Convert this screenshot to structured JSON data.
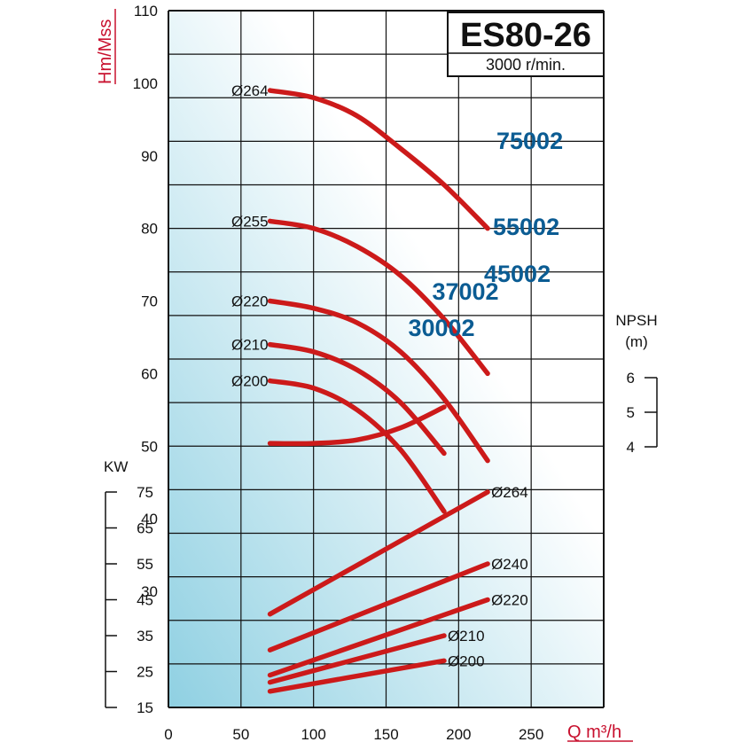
{
  "chart_data": {
    "type": "line",
    "title": "ES80-26",
    "subtitle": "3000 r/min.",
    "xlabel": "Q m³/h",
    "xlim": [
      0,
      300
    ],
    "x_ticks": [
      "0",
      "50",
      "100",
      "150",
      "200",
      "250"
    ],
    "grid": true,
    "colors": {
      "curve": "#cc1a1a",
      "model_label": "#0b5c93",
      "axis_label": "#c8102e",
      "grid": "#111111",
      "bg_light": "#ffffff",
      "bg_dark": "#8fd0e2"
    },
    "head": {
      "ylabel": "Hm/Mss",
      "ylim": [
        20,
        110
      ],
      "y_ticks": [
        "30",
        "40",
        "50",
        "60",
        "70",
        "80",
        "90",
        "100",
        "110"
      ],
      "series": [
        {
          "diameter": "Ø264",
          "model": "75002",
          "x": [
            70,
            100,
            130,
            160,
            190,
            220
          ],
          "y": [
            99,
            98,
            95.5,
            91,
            86,
            80
          ]
        },
        {
          "diameter": "Ø255",
          "model": "55002",
          "x": [
            70,
            100,
            130,
            160,
            190,
            220
          ],
          "y": [
            81,
            80,
            77.5,
            73.5,
            67.5,
            60
          ]
        },
        {
          "diameter": "Ø220",
          "model": "45002",
          "x": [
            70,
            100,
            130,
            160,
            190,
            220
          ],
          "y": [
            70,
            69,
            67,
            63,
            56.5,
            48
          ]
        },
        {
          "diameter": "Ø210",
          "model": "37002",
          "x": [
            70,
            100,
            130,
            160,
            190
          ],
          "y": [
            64,
            63,
            60.5,
            56,
            49
          ]
        },
        {
          "diameter": "Ø200",
          "model": "30002",
          "x": [
            70,
            100,
            130,
            160,
            190
          ],
          "y": [
            59,
            58,
            55,
            49.5,
            41
          ]
        }
      ]
    },
    "npsh": {
      "label": "NPSH",
      "unit": "(m)",
      "ylim": [
        4,
        6
      ],
      "y_ticks": [
        "4",
        "5",
        "6"
      ],
      "x": [
        70,
        100,
        130,
        160,
        190
      ],
      "y": [
        4.1,
        4.1,
        4.2,
        4.55,
        5.15
      ]
    },
    "power": {
      "ylabel": "KW",
      "ylim": [
        15,
        75
      ],
      "y_ticks": [
        "15",
        "25",
        "35",
        "45",
        "55",
        "65",
        "75"
      ],
      "series": [
        {
          "diameter": "Ø264",
          "x": [
            70,
            220
          ],
          "y": [
            41,
            75
          ]
        },
        {
          "diameter": "Ø240",
          "x": [
            70,
            220
          ],
          "y": [
            31,
            55
          ]
        },
        {
          "diameter": "Ø220",
          "x": [
            70,
            220
          ],
          "y": [
            24,
            45
          ]
        },
        {
          "diameter": "Ø210",
          "x": [
            70,
            190
          ],
          "y": [
            22,
            35
          ]
        },
        {
          "diameter": "Ø200",
          "x": [
            70,
            190
          ],
          "y": [
            19.5,
            28
          ]
        }
      ]
    }
  }
}
